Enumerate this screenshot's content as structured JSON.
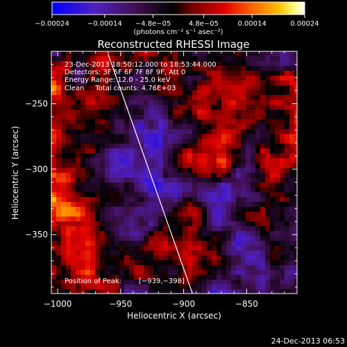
{
  "chart_data": {
    "type": "heatmap",
    "title": "Reconstructed RHESSI Image",
    "xlabel": "Heliocentric X (arcsec)",
    "ylabel": "Heliocentric Y (arcsec)",
    "xlim": [
      -1005,
      -810
    ],
    "ylim": [
      -395,
      -210
    ],
    "x_ticks": [
      -1000,
      -950,
      -900,
      -850
    ],
    "x_tick_labels": [
      "−1000",
      "−950",
      "−900",
      "−850"
    ],
    "y_ticks": [
      -250,
      -300,
      -350
    ],
    "y_tick_labels": [
      "−250",
      "−300",
      "−350"
    ],
    "colorbar": {
      "range": [
        -0.00024,
        0.00024
      ],
      "ticks": [
        -0.00024,
        -0.00014,
        -4.8e-05,
        4.8e-05,
        0.00014,
        0.00024
      ],
      "tick_labels": [
        "−0.00024",
        "−0.00014",
        "−4.8e−05",
        "4.8e−05",
        "0.00014",
        "0.00024"
      ],
      "units_label": "(photons cm⁻² s⁻¹ asec⁻²)",
      "stops": [
        "#0000ff",
        "#5020c0",
        "#401050",
        "#000000",
        "#700000",
        "#e00000",
        "#ff6a00",
        "#ffc000",
        "#ffff80",
        "#ffffff"
      ]
    },
    "annotations": [
      "23-Dec-2013 18:50:12.000 to 18:53:44.000",
      "Detectors: 3F 5F 6F 7F 8F 9F, Att 0",
      "Energy Range: 12.0 - 25.0 keV",
      "Clean     Total counts: 4.76E+03"
    ],
    "peak_label": "Position of Peak:",
    "peak_value": "[−939,−398]",
    "limb_line": {
      "x": [
        -960,
        -893
      ],
      "y": [
        -212,
        -395
      ]
    },
    "grid": false
  },
  "footer": {
    "timestamp": "24-Dec-2013 06:53"
  }
}
